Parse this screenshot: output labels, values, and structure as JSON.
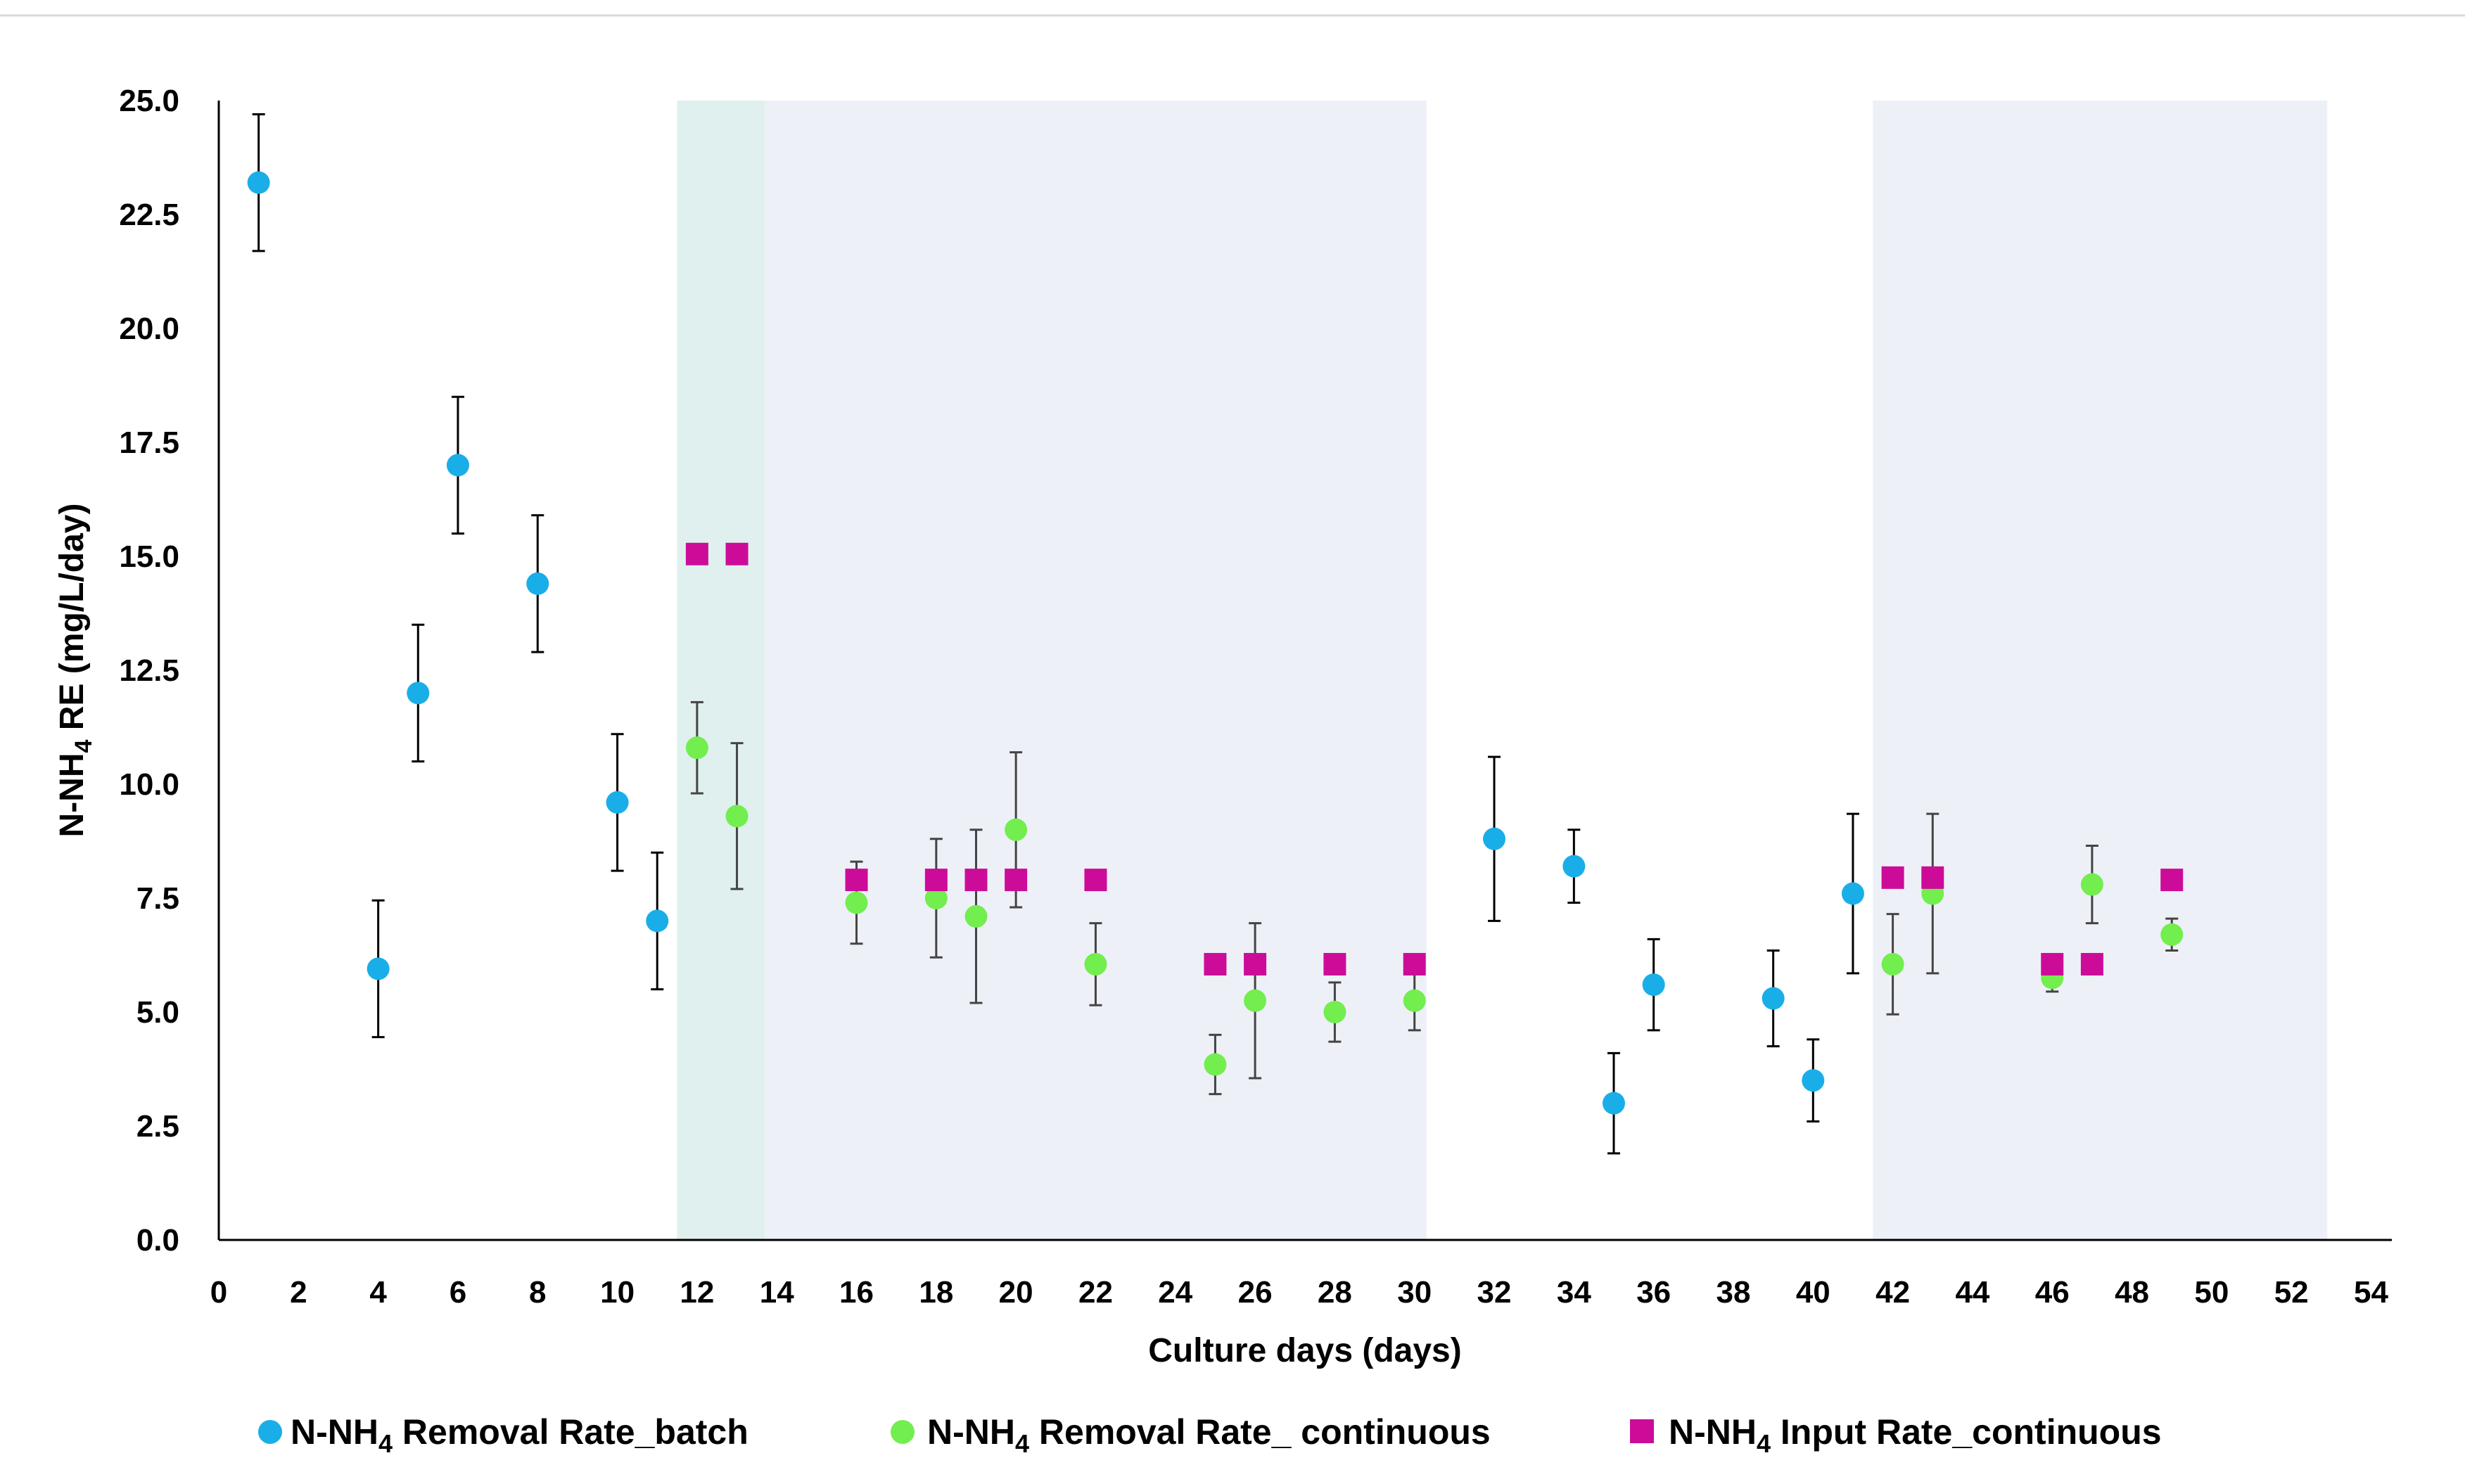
{
  "chart_data": {
    "type": "scatter",
    "title": "",
    "xlabel": "Culture days (days)",
    "ylabel": {
      "prefix": "N-NH",
      "subscript": "4",
      "suffix": " RE (mg/L/day)"
    },
    "xlim": [
      0,
      54
    ],
    "ylim": [
      0,
      25
    ],
    "x_ticks": [
      "0",
      "2",
      "4",
      "6",
      "8",
      "10",
      "12",
      "14",
      "16",
      "18",
      "20",
      "22",
      "24",
      "26",
      "28",
      "30",
      "32",
      "34",
      "36",
      "38",
      "40",
      "42",
      "44",
      "46",
      "48",
      "50",
      "52",
      "54"
    ],
    "y_ticks": [
      "0.0",
      "2.5",
      "5.0",
      "7.5",
      "10.0",
      "12.5",
      "15.0",
      "17.5",
      "20.0",
      "22.5",
      "25.0"
    ],
    "shaded_regions": [
      {
        "x0": 11.5,
        "x1": 13.7,
        "color": "#dff0ee"
      },
      {
        "x0": 13.7,
        "x1": 30.3,
        "color": "#eef0f8"
      },
      {
        "x0": 41.5,
        "x1": 52.9,
        "color": "#eef0f8"
      }
    ],
    "legend_position": "bottom",
    "series": [
      {
        "name": {
          "prefix": "N-NH",
          "subscript": "4",
          "suffix": " Removal Rate_batch"
        },
        "marker": "circle",
        "color": "#1aaee8",
        "error_color": "#000000",
        "points": [
          {
            "x": 1,
            "y": 23.2,
            "err": 1.5
          },
          {
            "x": 4,
            "y": 5.95,
            "err": 1.5
          },
          {
            "x": 5,
            "y": 12.0,
            "err": 1.5
          },
          {
            "x": 6,
            "y": 17.0,
            "err": 1.5
          },
          {
            "x": 8,
            "y": 14.4,
            "err": 1.5
          },
          {
            "x": 10,
            "y": 9.6,
            "err": 1.5
          },
          {
            "x": 11,
            "y": 7.0,
            "err": 1.5
          },
          {
            "x": 32,
            "y": 8.8,
            "err": 1.8
          },
          {
            "x": 34,
            "y": 8.2,
            "err": 0.8
          },
          {
            "x": 35,
            "y": 3.0,
            "err": 1.1
          },
          {
            "x": 36,
            "y": 5.6,
            "err": 1.0
          },
          {
            "x": 39,
            "y": 5.3,
            "err": 1.05
          },
          {
            "x": 40,
            "y": 3.5,
            "err": 0.9
          },
          {
            "x": 41,
            "y": 7.6,
            "err": 1.75
          }
        ]
      },
      {
        "name": {
          "prefix": "N-NH",
          "subscript": "4",
          "suffix": " Removal Rate_ continuous"
        },
        "marker": "circle",
        "color": "#72ee4f",
        "error_color": "#444444",
        "points": [
          {
            "x": 12,
            "y": 10.8,
            "err": 1.0
          },
          {
            "x": 13,
            "y": 9.3,
            "err": 1.6
          },
          {
            "x": 16,
            "y": 7.4,
            "err": 0.9
          },
          {
            "x": 18,
            "y": 7.5,
            "err": 1.3
          },
          {
            "x": 19,
            "y": 7.1,
            "err": 1.9
          },
          {
            "x": 20,
            "y": 9.0,
            "err": 1.7
          },
          {
            "x": 22,
            "y": 6.05,
            "err": 0.9
          },
          {
            "x": 25,
            "y": 3.85,
            "err": 0.65
          },
          {
            "x": 26,
            "y": 5.25,
            "err": 1.7
          },
          {
            "x": 28,
            "y": 5.0,
            "err": 0.65
          },
          {
            "x": 30,
            "y": 5.25,
            "err": 0.65
          },
          {
            "x": 42,
            "y": 6.05,
            "err": 1.1
          },
          {
            "x": 43,
            "y": 7.6,
            "err": 1.75
          },
          {
            "x": 46,
            "y": 5.75,
            "err": 0.3
          },
          {
            "x": 47,
            "y": 7.8,
            "err": 0.85
          },
          {
            "x": 49,
            "y": 6.7,
            "err": 0.35
          }
        ]
      },
      {
        "name": {
          "prefix": "N-NH",
          "subscript": "4",
          "suffix": " Input Rate_continuous"
        },
        "marker": "square",
        "color": "#cc0c99",
        "error_color": "#444444",
        "points": [
          {
            "x": 12,
            "y": 15.05,
            "err": 0
          },
          {
            "x": 13,
            "y": 15.05,
            "err": 0
          },
          {
            "x": 16,
            "y": 7.9,
            "err": 0
          },
          {
            "x": 18,
            "y": 7.9,
            "err": 0
          },
          {
            "x": 19,
            "y": 7.9,
            "err": 0
          },
          {
            "x": 20,
            "y": 7.9,
            "err": 0
          },
          {
            "x": 22,
            "y": 7.9,
            "err": 0
          },
          {
            "x": 25,
            "y": 6.05,
            "err": 0
          },
          {
            "x": 26,
            "y": 6.05,
            "err": 0
          },
          {
            "x": 28,
            "y": 6.05,
            "err": 0
          },
          {
            "x": 30,
            "y": 6.05,
            "err": 0
          },
          {
            "x": 42,
            "y": 7.95,
            "err": 0
          },
          {
            "x": 43,
            "y": 7.95,
            "err": 0
          },
          {
            "x": 46,
            "y": 6.05,
            "err": 0
          },
          {
            "x": 47,
            "y": 6.05,
            "err": 0
          },
          {
            "x": 49,
            "y": 7.9,
            "err": 0
          }
        ]
      }
    ]
  }
}
